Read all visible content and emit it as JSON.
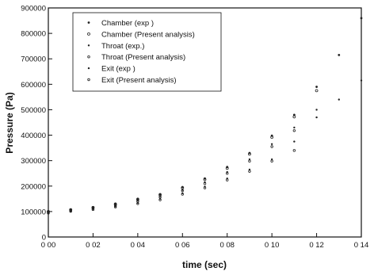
{
  "chart_data": {
    "type": "scatter",
    "xlabel": "time (sec)",
    "ylabel": "Pressure (Pa)",
    "xlim": [
      0.0,
      0.14
    ],
    "ylim": [
      0,
      900000
    ],
    "x_ticks": [
      0.0,
      0.02,
      0.04,
      0.06,
      0.08,
      0.1,
      0.12,
      0.14
    ],
    "x_tick_labels": [
      "0 00",
      "0 02",
      "0 04",
      "0 06",
      "0 08",
      "0 10",
      "0 12",
      "0 14"
    ],
    "y_ticks": [
      0,
      100000,
      200000,
      300000,
      400000,
      500000,
      600000,
      700000,
      800000,
      900000
    ],
    "y_tick_labels": [
      "0",
      "100000",
      "200000",
      "300000",
      "400000",
      "500000",
      "600000",
      "700000",
      "800000",
      "900000"
    ],
    "grid": false,
    "legend_position": "top-left",
    "legend": [
      "Chamber (exp )",
      "Chamber (Present analysis)",
      "Throat (exp.)",
      "Throat (Present analysis)",
      "Exit (exp )",
      "Exit (Present analysis)"
    ],
    "series": [
      {
        "name": "Chamber (exp )",
        "x": [
          0.0,
          0.01,
          0.02,
          0.03,
          0.04,
          0.05,
          0.06,
          0.07,
          0.08,
          0.09,
          0.1,
          0.11,
          0.12,
          0.13,
          0.14
        ],
        "y": [
          100000,
          108000,
          117000,
          131000,
          150000,
          168000,
          196000,
          230000,
          275000,
          330000,
          398000,
          480000,
          590000,
          715000,
          860000
        ]
      },
      {
        "name": "Chamber (Present analysis)",
        "x": [
          0.0,
          0.01,
          0.02,
          0.03,
          0.04,
          0.05,
          0.06,
          0.07,
          0.08,
          0.09,
          0.1,
          0.11,
          0.12
        ],
        "y": [
          100000,
          107000,
          116000,
          129000,
          148000,
          166000,
          193000,
          226000,
          270000,
          326000,
          392000,
          472000,
          575000
        ]
      },
      {
        "name": "Throat (exp.)",
        "x": [
          0.0,
          0.01,
          0.02,
          0.03,
          0.04,
          0.05,
          0.06,
          0.07,
          0.08,
          0.09,
          0.1,
          0.11,
          0.12
        ],
        "y": [
          98000,
          105000,
          113000,
          126000,
          143000,
          160000,
          185000,
          215000,
          255000,
          305000,
          365000,
          430000,
          500000
        ]
      },
      {
        "name": "Throat (Present analysis)",
        "x": [
          0.0,
          0.01,
          0.02,
          0.03,
          0.04,
          0.05,
          0.06,
          0.07,
          0.08,
          0.09,
          0.1,
          0.11
        ],
        "y": [
          97000,
          104000,
          112000,
          124000,
          140000,
          157000,
          182000,
          210000,
          250000,
          298000,
          355000,
          418000
        ]
      },
      {
        "name": "Exit (exp )",
        "x": [
          0.0,
          0.01,
          0.02,
          0.03,
          0.04,
          0.05,
          0.06,
          0.07,
          0.08,
          0.09,
          0.1,
          0.11,
          0.12,
          0.13,
          0.14
        ],
        "y": [
          95000,
          102000,
          110000,
          120000,
          134000,
          150000,
          172000,
          198000,
          230000,
          265000,
          305000,
          375000,
          470000,
          540000,
          615000
        ]
      },
      {
        "name": "Exit (Present analysis)",
        "x": [
          0.0,
          0.01,
          0.02,
          0.03,
          0.04,
          0.05,
          0.06,
          0.07,
          0.08,
          0.09,
          0.1,
          0.11
        ],
        "y": [
          94000,
          101000,
          108000,
          118000,
          131000,
          146000,
          168000,
          193000,
          224000,
          258000,
          298000,
          340000
        ]
      }
    ]
  }
}
